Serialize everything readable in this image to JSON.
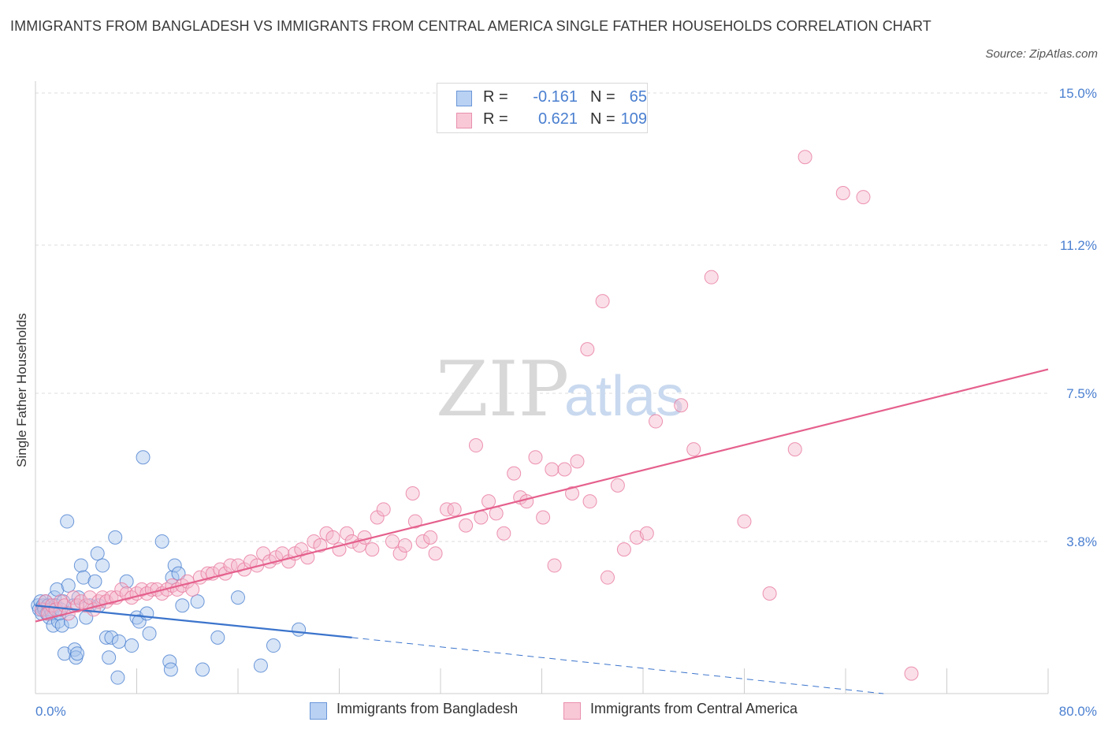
{
  "title": "IMMIGRANTS FROM BANGLADESH VS IMMIGRANTS FROM CENTRAL AMERICA SINGLE FATHER HOUSEHOLDS CORRELATION CHART",
  "source": "Source: ZipAtlas.com",
  "watermark": {
    "zip": "ZIP",
    "atlas": "atlas"
  },
  "colors": {
    "blue": "#4a7fd0",
    "blue_fill": "#a9c6ee",
    "blue_line": "#3b74cc",
    "pink": "#e8799e",
    "pink_fill": "#f5b8cb",
    "pink_line": "#e5608d",
    "grid": "#dcdcdc",
    "tick_text": "#4a7fd0"
  },
  "legend": {
    "rows": [
      {
        "r_label": "R =",
        "r_value": "-0.161",
        "n_label": "N =",
        "n_value": "65"
      },
      {
        "r_label": "R =",
        "r_value": "0.621",
        "n_label": "N =",
        "n_value": "109"
      }
    ]
  },
  "bottom_legend": [
    "Immigrants from Bangladesh",
    "Immigrants from Central America"
  ],
  "chart_data": {
    "type": "scatter",
    "title": "IMMIGRANTS FROM BANGLADESH VS IMMIGRANTS FROM CENTRAL AMERICA SINGLE FATHER HOUSEHOLDS CORRELATION CHART",
    "xlabel": "",
    "ylabel": "Single Father Households",
    "xlim": [
      0,
      80
    ],
    "ylim": [
      0,
      15
    ],
    "x_tick_labels": [
      "0.0%",
      "80.0%"
    ],
    "y_ticks": [
      3.8,
      7.5,
      11.2,
      15.0
    ],
    "y_tick_labels": [
      "3.8%",
      "7.5%",
      "11.2%",
      "15.0%"
    ],
    "grid": true,
    "legend_position": "top-center",
    "series": [
      {
        "name": "Immigrants from Bangladesh",
        "color": "#4a7fd0",
        "r": -0.161,
        "n": 65,
        "trend": {
          "x": [
            0,
            25
          ],
          "y": [
            2.2,
            1.4
          ],
          "dashed_to": [
            67,
            0
          ]
        },
        "points": [
          [
            0.2,
            2.2
          ],
          [
            0.3,
            2.1
          ],
          [
            0.4,
            2.3
          ],
          [
            0.5,
            2.0
          ],
          [
            0.6,
            2.2
          ],
          [
            0.7,
            2.1
          ],
          [
            0.8,
            2.3
          ],
          [
            0.9,
            2.0
          ],
          [
            1.0,
            2.2
          ],
          [
            1.1,
            1.9
          ],
          [
            1.2,
            2.1
          ],
          [
            1.3,
            2.0
          ],
          [
            1.4,
            1.7
          ],
          [
            1.5,
            2.4
          ],
          [
            1.6,
            2.2
          ],
          [
            1.7,
            2.6
          ],
          [
            1.8,
            1.8
          ],
          [
            1.9,
            2.0
          ],
          [
            2.0,
            2.1
          ],
          [
            2.1,
            1.7
          ],
          [
            2.2,
            2.3
          ],
          [
            2.3,
            1.0
          ],
          [
            2.5,
            4.3
          ],
          [
            2.6,
            2.7
          ],
          [
            2.8,
            1.8
          ],
          [
            3.0,
            2.2
          ],
          [
            3.1,
            1.1
          ],
          [
            3.2,
            0.9
          ],
          [
            3.3,
            1.0
          ],
          [
            3.4,
            2.4
          ],
          [
            3.6,
            3.2
          ],
          [
            3.8,
            2.9
          ],
          [
            4.0,
            1.9
          ],
          [
            4.3,
            2.2
          ],
          [
            4.7,
            2.8
          ],
          [
            4.9,
            3.5
          ],
          [
            5.0,
            2.2
          ],
          [
            5.3,
            3.2
          ],
          [
            5.6,
            1.4
          ],
          [
            5.8,
            0.9
          ],
          [
            6.0,
            1.4
          ],
          [
            6.3,
            3.9
          ],
          [
            6.5,
            0.4
          ],
          [
            6.6,
            1.3
          ],
          [
            7.2,
            2.8
          ],
          [
            7.6,
            1.2
          ],
          [
            8.0,
            1.9
          ],
          [
            8.2,
            1.8
          ],
          [
            8.5,
            5.9
          ],
          [
            8.8,
            2.0
          ],
          [
            9.0,
            1.5
          ],
          [
            10.0,
            3.8
          ],
          [
            10.6,
            0.8
          ],
          [
            10.7,
            0.6
          ],
          [
            10.8,
            2.9
          ],
          [
            11.0,
            3.2
          ],
          [
            11.3,
            3.0
          ],
          [
            11.6,
            2.2
          ],
          [
            12.8,
            2.3
          ],
          [
            13.2,
            0.6
          ],
          [
            14.4,
            1.4
          ],
          [
            16.0,
            2.4
          ],
          [
            17.8,
            0.7
          ],
          [
            18.8,
            1.2
          ],
          [
            20.8,
            1.6
          ]
        ]
      },
      {
        "name": "Immigrants from Central America",
        "color": "#e8799e",
        "r": 0.621,
        "n": 109,
        "trend": {
          "x": [
            0,
            80
          ],
          "y": [
            1.8,
            8.1
          ]
        },
        "points": [
          [
            0.5,
            2.1
          ],
          [
            0.8,
            2.3
          ],
          [
            1.0,
            2.0
          ],
          [
            1.3,
            2.2
          ],
          [
            1.6,
            2.1
          ],
          [
            2.0,
            2.3
          ],
          [
            2.3,
            2.2
          ],
          [
            2.6,
            2.0
          ],
          [
            3.0,
            2.4
          ],
          [
            3.3,
            2.2
          ],
          [
            3.6,
            2.3
          ],
          [
            4.0,
            2.2
          ],
          [
            4.3,
            2.4
          ],
          [
            4.6,
            2.1
          ],
          [
            5.0,
            2.3
          ],
          [
            5.3,
            2.4
          ],
          [
            5.6,
            2.3
          ],
          [
            6.0,
            2.4
          ],
          [
            6.4,
            2.4
          ],
          [
            6.8,
            2.6
          ],
          [
            7.2,
            2.5
          ],
          [
            7.6,
            2.4
          ],
          [
            8.0,
            2.5
          ],
          [
            8.4,
            2.6
          ],
          [
            8.8,
            2.5
          ],
          [
            9.2,
            2.6
          ],
          [
            9.6,
            2.6
          ],
          [
            10.0,
            2.5
          ],
          [
            10.4,
            2.6
          ],
          [
            10.8,
            2.7
          ],
          [
            11.2,
            2.6
          ],
          [
            11.6,
            2.7
          ],
          [
            12.0,
            2.8
          ],
          [
            12.4,
            2.6
          ],
          [
            13.0,
            2.9
          ],
          [
            13.6,
            3.0
          ],
          [
            14.0,
            3.0
          ],
          [
            14.6,
            3.1
          ],
          [
            15.0,
            3.0
          ],
          [
            15.4,
            3.2
          ],
          [
            16.0,
            3.2
          ],
          [
            16.5,
            3.1
          ],
          [
            17.0,
            3.3
          ],
          [
            17.5,
            3.2
          ],
          [
            18.0,
            3.5
          ],
          [
            18.5,
            3.3
          ],
          [
            19.0,
            3.4
          ],
          [
            19.5,
            3.5
          ],
          [
            20.0,
            3.3
          ],
          [
            20.5,
            3.5
          ],
          [
            21.0,
            3.6
          ],
          [
            21.5,
            3.4
          ],
          [
            22.0,
            3.8
          ],
          [
            22.5,
            3.7
          ],
          [
            23.0,
            4.0
          ],
          [
            23.5,
            3.9
          ],
          [
            24.0,
            3.6
          ],
          [
            24.6,
            4.0
          ],
          [
            25.0,
            3.8
          ],
          [
            25.6,
            3.7
          ],
          [
            26.0,
            3.9
          ],
          [
            26.6,
            3.6
          ],
          [
            27.0,
            4.4
          ],
          [
            27.5,
            4.6
          ],
          [
            28.2,
            3.8
          ],
          [
            28.8,
            3.5
          ],
          [
            29.2,
            3.7
          ],
          [
            29.8,
            5.0
          ],
          [
            30.0,
            4.3
          ],
          [
            30.6,
            3.8
          ],
          [
            31.2,
            3.9
          ],
          [
            31.6,
            3.5
          ],
          [
            32.5,
            4.6
          ],
          [
            33.1,
            4.6
          ],
          [
            34.0,
            4.2
          ],
          [
            34.8,
            6.2
          ],
          [
            35.2,
            4.4
          ],
          [
            35.8,
            4.8
          ],
          [
            36.4,
            4.5
          ],
          [
            37.0,
            4.0
          ],
          [
            37.8,
            5.5
          ],
          [
            38.3,
            4.9
          ],
          [
            38.8,
            4.8
          ],
          [
            39.5,
            5.9
          ],
          [
            40.1,
            4.4
          ],
          [
            40.8,
            5.6
          ],
          [
            41.0,
            3.2
          ],
          [
            41.8,
            5.6
          ],
          [
            42.4,
            5.0
          ],
          [
            42.8,
            5.8
          ],
          [
            43.6,
            8.6
          ],
          [
            43.8,
            4.8
          ],
          [
            44.8,
            9.8
          ],
          [
            45.2,
            2.9
          ],
          [
            46.0,
            5.2
          ],
          [
            46.5,
            3.6
          ],
          [
            47.5,
            3.9
          ],
          [
            48.3,
            4.0
          ],
          [
            49.0,
            6.8
          ],
          [
            51.0,
            7.2
          ],
          [
            52.0,
            6.1
          ],
          [
            53.4,
            10.4
          ],
          [
            56.0,
            4.3
          ],
          [
            58.0,
            2.5
          ],
          [
            60.0,
            6.1
          ],
          [
            60.8,
            13.4
          ],
          [
            63.8,
            12.5
          ],
          [
            65.4,
            12.4
          ],
          [
            69.2,
            0.5
          ]
        ]
      }
    ]
  }
}
